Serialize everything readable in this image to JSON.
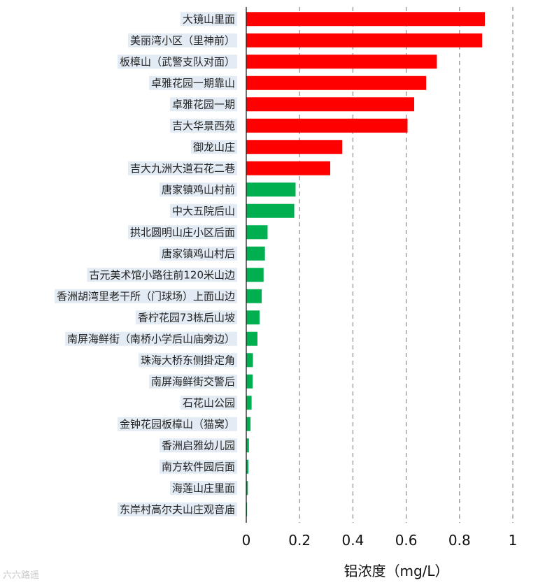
{
  "chart_data": {
    "type": "bar",
    "orientation": "horizontal",
    "categories": [
      "大镜山里面",
      "美丽湾小区（里神前）",
      "板樟山（武警支队对面）",
      "卓雅花园一期靠山",
      "卓雅花园一期",
      "吉大华景西苑",
      "御龙山庄",
      "吉大九洲大道石花二巷",
      "唐家镇鸡山村前",
      "中大五院后山",
      "拱北圆明山庄小区后面",
      "唐家镇鸡山村后",
      "古元美术馆小路往前120米山边",
      "香洲胡湾里老干所（门球场）上面山边",
      "香柠花园73栋后山坡",
      "南屏海鲜街（南桥小学后山庙旁边）",
      "珠海大桥东侧掛定角",
      "南屏海鲜街交警后",
      "石花山公园",
      "金钟花园板樟山（猫窝）",
      "香洲启雅幼儿园",
      "南方软件园后面",
      "海莲山庄里面",
      "东岸村高尔夫山庄观音庙"
    ],
    "values": [
      0.895,
      0.885,
      0.715,
      0.675,
      0.63,
      0.605,
      0.36,
      0.315,
      0.185,
      0.18,
      0.08,
      0.07,
      0.065,
      0.058,
      0.05,
      0.042,
      0.025,
      0.024,
      0.02,
      0.016,
      0.01,
      0.008,
      0.006,
      0.003
    ],
    "bar_colors": [
      "#ff0000",
      "#ff0000",
      "#ff0000",
      "#ff0000",
      "#ff0000",
      "#ff0000",
      "#ff0000",
      "#ff0000",
      "#00b050",
      "#00b050",
      "#00b050",
      "#00b050",
      "#00b050",
      "#00b050",
      "#00b050",
      "#00b050",
      "#00b050",
      "#00b050",
      "#00b050",
      "#00b050",
      "#00b050",
      "#00b050",
      "#00b050",
      "#00b050"
    ],
    "xlim": [
      0,
      1
    ],
    "xticks": [
      0,
      0.2,
      0.4,
      0.6,
      0.8,
      1
    ],
    "xtick_labels": [
      "0",
      "0.2",
      "0.4",
      "0.6",
      "0.8",
      "1"
    ],
    "xlabel": "铝浓度（mg/L）",
    "title": "",
    "grid": "vertical-dashed",
    "legend": "none"
  },
  "watermark": "六六路遥"
}
